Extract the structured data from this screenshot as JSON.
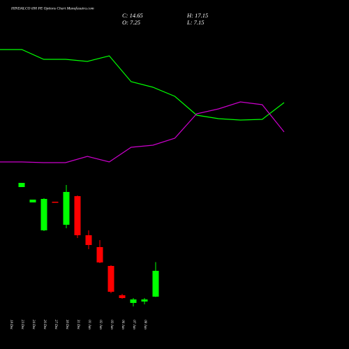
{
  "chart_data": {
    "type": "candlestick",
    "title": "HINDALCO 690 PE Options Chart Munafasutra.com",
    "ohlc_labels": [
      "C: 14.65",
      "H: 17.15",
      "O: 7.25",
      "L: 7.15"
    ],
    "categories": [
      "18 Dec",
      "23 Dec",
      "24 Dec",
      "26 Dec",
      "27 Dec",
      "30 Dec",
      "31 Dec",
      "01 Jan",
      "02 Jan",
      "03 Jan",
      "06 Jan",
      "07 Jan",
      "08 Jan"
    ],
    "open": [
      38.65,
      34.25,
      26.25,
      34.45,
      27.85,
      36.05,
      24.85,
      21.45,
      16.05,
      7.65,
      5.45,
      5.85,
      7.25
    ],
    "high": [
      39.85,
      35.05,
      35.45,
      34.45,
      39.25,
      36.25,
      26.25,
      23.45,
      16.25,
      8.05,
      6.85,
      6.85,
      17.15
    ],
    "low": [
      38.65,
      34.25,
      26.05,
      34.25,
      26.85,
      24.05,
      20.85,
      16.85,
      8.25,
      6.65,
      4.45,
      5.05,
      7.15
    ],
    "close": [
      39.85,
      35.05,
      35.25,
      34.25,
      37.25,
      24.85,
      22.05,
      17.05,
      8.65,
      6.85,
      6.45,
      6.45,
      14.65
    ],
    "up_color": "#00ff00",
    "down_color": "#ff0000",
    "ylim": [
      -7.75,
      92.25
    ],
    "lines": {
      "x": [
        0,
        1,
        2,
        3,
        4,
        5,
        6,
        7,
        8,
        9,
        10,
        11,
        12,
        13
      ],
      "xlim": [
        0,
        13
      ],
      "ylim": [
        0,
        500
      ],
      "series": [
        {
          "color": "#00ff00",
          "values": [
            429,
            429,
            415,
            415,
            412,
            420,
            383,
            375,
            362,
            335,
            330,
            328,
            329,
            353
          ]
        },
        {
          "color": "#cc00cc",
          "values": [
            268,
            268,
            267,
            267,
            276,
            268,
            289,
            292,
            302,
            337,
            344,
            354,
            350,
            311
          ]
        }
      ]
    }
  }
}
